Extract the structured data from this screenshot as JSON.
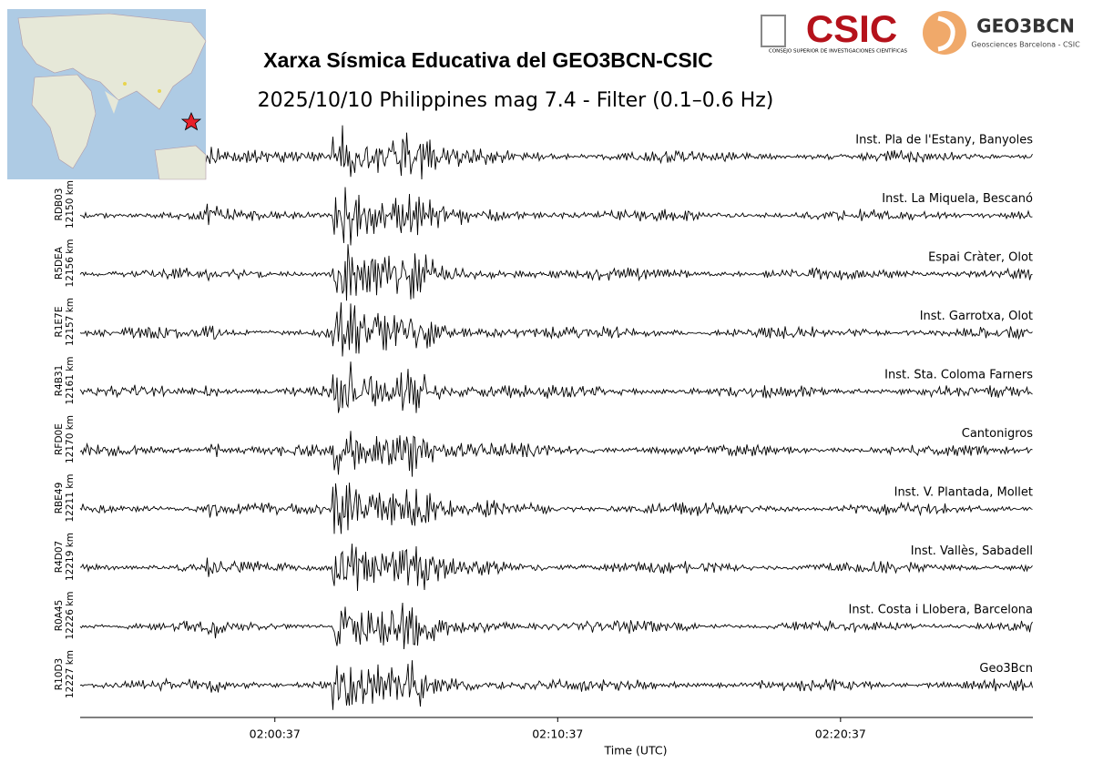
{
  "chart_data": {
    "type": "waveform",
    "title": "Xarxa Sísmica Educativa del GEO3BCN-CSIC",
    "subtitle": "2025/10/10 Philippines mag 7.4 - Filter (0.1–0.6 Hz)",
    "xlabel": "Time (UTC)",
    "xlim": [
      "01:53:44",
      "02:27:25"
    ],
    "xticks": [
      "02:00:37",
      "02:10:37",
      "02:20:37"
    ],
    "logos": {
      "csic": "CSIC",
      "csic_full": "CONSEJO SUPERIOR DE INVESTIGACIONES CIENTÍFICAS",
      "geo": "GEO3BCN",
      "geo_full": "Geosciences Barcelona - CSIC"
    },
    "series": [
      {
        "name": null,
        "distance": null,
        "location": "Inst. Pla de l'Estany, Banyoles"
      },
      {
        "name": "RDB03",
        "distance": "12150 km",
        "location": "Inst. La Miquela, Bescanó"
      },
      {
        "name": "R5DEA",
        "distance": "12156 km",
        "location": "Espai Cràter, Olot"
      },
      {
        "name": "R1E7E",
        "distance": "12157 km",
        "location": "Inst. Garrotxa, Olot"
      },
      {
        "name": "R4B31",
        "distance": "12161 km",
        "location": "Inst. Sta. Coloma Farners"
      },
      {
        "name": "RFD0E",
        "distance": "12170 km",
        "location": "Cantonigros"
      },
      {
        "name": "RBE49",
        "distance": "12211 km",
        "location": "Inst. V. Plantada, Mollet"
      },
      {
        "name": "R4D07",
        "distance": "12219 km",
        "location": "Inst. Vallès, Sabadell"
      },
      {
        "name": "R0A45",
        "distance": "12226 km",
        "location": "Inst. Costa i Llobera, Barcelona"
      },
      {
        "name": "R10D3",
        "distance": "12227 km",
        "location": "Geo3Bcn"
      }
    ]
  }
}
